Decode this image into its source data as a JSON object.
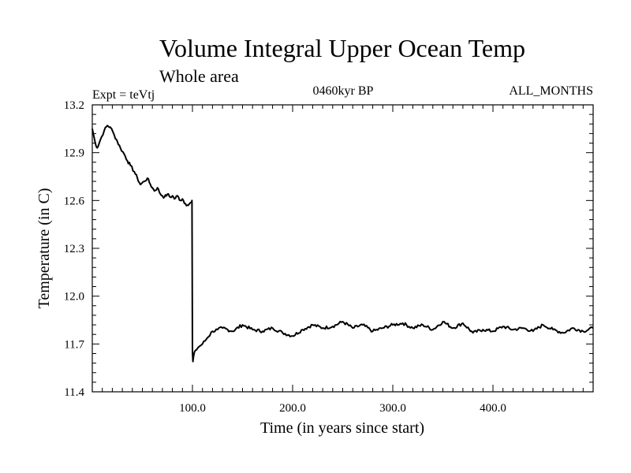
{
  "chart_data": {
    "type": "line",
    "title": "Volume Integral Upper Ocean Temp",
    "subtitle": "Whole area",
    "expt_label": "Expt = teVtj",
    "period_label": "0460kyr BP",
    "months_label": "ALL_MONTHS",
    "xlabel": "Time (in years since start)",
    "ylabel": "Temperature (in C)",
    "xlim": [
      0,
      500
    ],
    "ylim": [
      11.4,
      13.2
    ],
    "x_ticks": [
      {
        "value": 100,
        "label": "100.0"
      },
      {
        "value": 200,
        "label": "200.0"
      },
      {
        "value": 300,
        "label": "300.0"
      },
      {
        "value": 400,
        "label": "400.0"
      }
    ],
    "y_ticks": [
      {
        "value": 11.4,
        "label": "11.4"
      },
      {
        "value": 11.7,
        "label": "11.7"
      },
      {
        "value": 12.0,
        "label": "12.0"
      },
      {
        "value": 12.3,
        "label": "12.3"
      },
      {
        "value": 12.6,
        "label": "12.6"
      },
      {
        "value": 12.9,
        "label": "12.9"
      },
      {
        "value": 13.2,
        "label": "13.2"
      }
    ],
    "grid": false,
    "series": [
      {
        "name": "Temperature",
        "color": "#000000",
        "x": [
          0,
          3,
          5,
          8,
          12,
          15,
          18,
          22,
          25,
          28,
          32,
          35,
          38,
          42,
          45,
          48,
          52,
          55,
          58,
          60,
          62,
          65,
          68,
          70,
          72,
          75,
          78,
          80,
          82,
          85,
          88,
          90,
          93,
          96,
          99,
          99.5,
          100,
          100.5,
          101,
          103,
          106,
          110,
          115,
          120,
          125,
          130,
          140,
          150,
          160,
          170,
          180,
          190,
          200,
          210,
          220,
          230,
          240,
          250,
          260,
          270,
          280,
          290,
          300,
          310,
          320,
          330,
          340,
          350,
          360,
          370,
          380,
          390,
          400,
          410,
          420,
          430,
          440,
          450,
          460,
          470,
          480,
          490,
          500
        ],
        "values": [
          13.05,
          12.96,
          12.93,
          12.98,
          13.04,
          13.07,
          13.06,
          13.01,
          12.97,
          12.93,
          12.89,
          12.85,
          12.82,
          12.78,
          12.74,
          12.7,
          12.72,
          12.74,
          12.7,
          12.68,
          12.66,
          12.68,
          12.64,
          12.63,
          12.62,
          12.64,
          12.62,
          12.63,
          12.61,
          12.63,
          12.6,
          12.61,
          12.58,
          12.57,
          12.59,
          12.6,
          11.65,
          11.59,
          11.62,
          11.66,
          11.68,
          11.7,
          11.74,
          11.78,
          11.79,
          11.8,
          11.78,
          11.82,
          11.79,
          11.78,
          11.8,
          11.77,
          11.75,
          11.79,
          11.82,
          11.8,
          11.81,
          11.84,
          11.8,
          11.82,
          11.78,
          11.8,
          11.82,
          11.83,
          11.8,
          11.82,
          11.79,
          11.84,
          11.8,
          11.83,
          11.77,
          11.79,
          11.78,
          11.81,
          11.79,
          11.8,
          11.78,
          11.82,
          11.79,
          11.77,
          11.8,
          11.78,
          11.8
        ]
      }
    ]
  }
}
